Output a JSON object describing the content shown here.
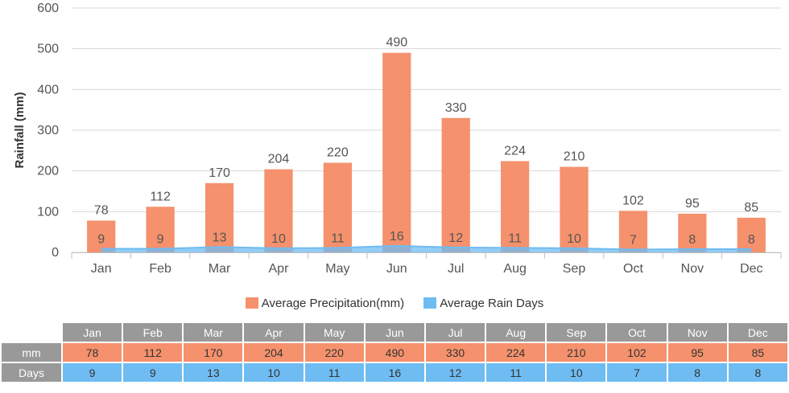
{
  "chart_data": {
    "type": "bar",
    "categories": [
      "Jan",
      "Feb",
      "Mar",
      "Apr",
      "May",
      "Jun",
      "Jul",
      "Aug",
      "Sep",
      "Oct",
      "Nov",
      "Dec"
    ],
    "series": [
      {
        "name": "Average Precipitation(mm)",
        "type": "bar",
        "values": [
          78,
          112,
          170,
          204,
          220,
          490,
          330,
          224,
          210,
          102,
          95,
          85
        ]
      },
      {
        "name": "Average Rain Days",
        "type": "area",
        "values": [
          9,
          9,
          13,
          10,
          11,
          16,
          12,
          11,
          10,
          7,
          8,
          8
        ]
      }
    ],
    "ylabel": "Rainfall (mm)",
    "ylim": [
      0,
      600
    ],
    "yticks": [
      "0",
      "100",
      "200",
      "300",
      "400",
      "500",
      "600"
    ],
    "legend_position": "bottom-center",
    "grid": true
  },
  "colors": {
    "precip": "#f5916c",
    "days": "#6fbcf2",
    "grid": "#d8d8d8",
    "table_header": "#999999"
  },
  "legend": {
    "precip_label": "Average Precipitation(mm)",
    "days_label": "Average Rain Days"
  },
  "table": {
    "months": [
      "Jan",
      "Feb",
      "Mar",
      "Apr",
      "May",
      "Jun",
      "Jul",
      "Aug",
      "Sep",
      "Oct",
      "Nov",
      "Dec"
    ],
    "mm_label": "mm",
    "mm": [
      "78",
      "112",
      "170",
      "204",
      "220",
      "490",
      "330",
      "224",
      "210",
      "102",
      "95",
      "85"
    ],
    "days_label": "Days",
    "days": [
      "9",
      "9",
      "13",
      "10",
      "11",
      "16",
      "12",
      "11",
      "10",
      "7",
      "8",
      "8"
    ]
  }
}
